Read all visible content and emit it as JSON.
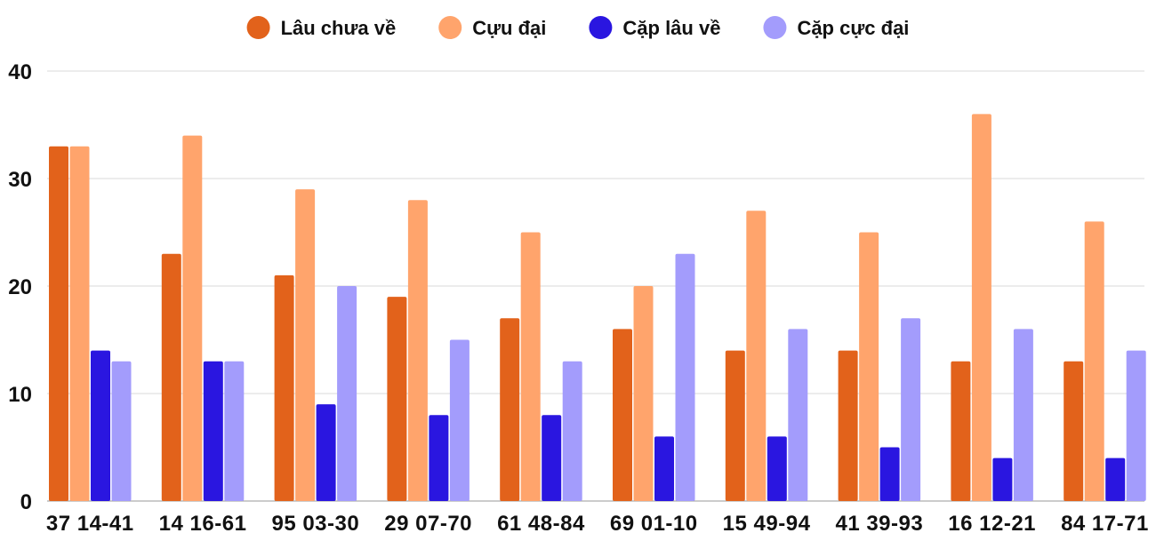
{
  "chart_data": {
    "type": "bar",
    "categories": [
      "37 14-41",
      "14 16-61",
      "95 03-30",
      "29 07-70",
      "61 48-84",
      "69 01-10",
      "15 49-94",
      "41 39-93",
      "16 12-21",
      "84 17-71"
    ],
    "series": [
      {
        "name": "Lâu chưa về",
        "color": "#e2621b",
        "values": [
          33,
          23,
          21,
          19,
          17,
          16,
          14,
          14,
          13,
          13
        ]
      },
      {
        "name": "Cựu đại",
        "color": "#ffa46c",
        "values": [
          33,
          34,
          29,
          28,
          25,
          20,
          27,
          25,
          36,
          26
        ]
      },
      {
        "name": "Cặp lâu về",
        "color": "#2a16e0",
        "values": [
          14,
          13,
          9,
          8,
          8,
          6,
          6,
          5,
          4,
          4
        ]
      },
      {
        "name": "Cặp cực đại",
        "color": "#a39cfc",
        "values": [
          13,
          13,
          20,
          15,
          13,
          23,
          16,
          17,
          16,
          14
        ]
      }
    ],
    "ylim": [
      0,
      40
    ],
    "yticks": [
      0,
      10,
      20,
      30,
      40
    ],
    "grid": true,
    "legend_position": "top-center"
  }
}
